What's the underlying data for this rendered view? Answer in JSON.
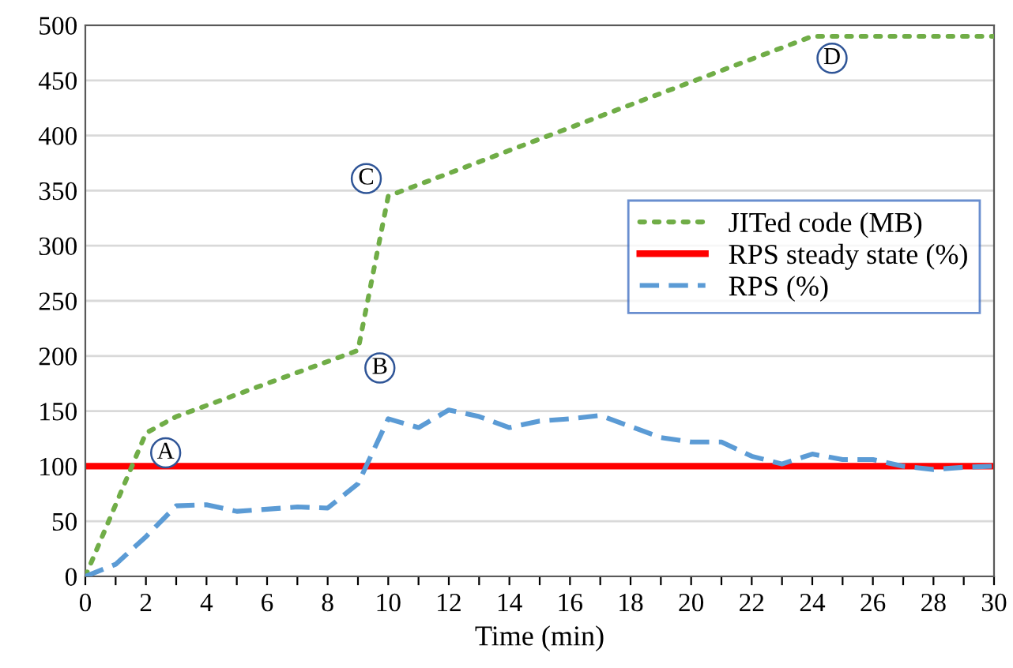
{
  "chart_data": {
    "type": "line",
    "xlabel": "Time (min)",
    "series": [
      {
        "name": "JITed code (MB)",
        "color": "#70ad47",
        "line_style": "dotted",
        "x": [
          0,
          2,
          3,
          9,
          10,
          24,
          30
        ],
        "values": [
          0,
          130,
          145,
          205,
          345,
          490,
          490
        ]
      },
      {
        "name": "RPS (%)",
        "color": "#5b9bd5",
        "line_style": "dashed",
        "x": [
          0,
          1,
          2,
          3,
          4,
          5,
          6,
          7,
          8,
          9,
          10,
          11,
          12,
          13,
          14,
          15,
          16,
          17,
          18,
          19,
          20,
          21,
          22,
          23,
          24,
          25,
          26,
          27,
          28,
          29,
          30
        ],
        "values": [
          0,
          11,
          36,
          64,
          65,
          59,
          61,
          63,
          62,
          84,
          143,
          135,
          151,
          145,
          135,
          141,
          143,
          146,
          136,
          126,
          122,
          122,
          109,
          102,
          111,
          106,
          106,
          100,
          97,
          99,
          100
        ]
      }
    ],
    "ref_lines": [
      {
        "axis": "y",
        "value": 100,
        "label": "RPS steady state (%)",
        "color": "#ff0000",
        "line_style": "solid"
      }
    ],
    "annotations": [
      {
        "text": "A",
        "x": 2,
        "y": 130
      },
      {
        "text": "B",
        "x": 9,
        "y": 205
      },
      {
        "text": "C",
        "x": 10,
        "y": 345
      },
      {
        "text": "D",
        "x": 24,
        "y": 490
      }
    ],
    "xlim": [
      0,
      30
    ],
    "ylim": [
      0,
      500
    ],
    "xticks": [
      0,
      {
        "value": 1,
        "label": null
      },
      2,
      {
        "value": 3,
        "label": null
      },
      4,
      {
        "value": 5,
        "label": null
      },
      6,
      {
        "value": 7,
        "label": null
      },
      8,
      {
        "value": 9,
        "label": null
      },
      10,
      {
        "value": 11,
        "label": null
      },
      12,
      {
        "value": 13,
        "label": null
      },
      14,
      {
        "value": 15,
        "label": null
      },
      16,
      {
        "value": 17,
        "label": null
      },
      18,
      {
        "value": 19,
        "label": null
      },
      20,
      {
        "value": 21,
        "label": null
      },
      22,
      {
        "value": 23,
        "label": null
      },
      24,
      {
        "value": 25,
        "label": null
      },
      26,
      {
        "value": 27,
        "label": null
      },
      28,
      {
        "value": 29,
        "label": null
      },
      30
    ],
    "yticks": [
      0,
      50,
      100,
      150,
      200,
      250,
      300,
      350,
      400,
      450,
      500
    ],
    "grid": "y",
    "legend": "right"
  }
}
